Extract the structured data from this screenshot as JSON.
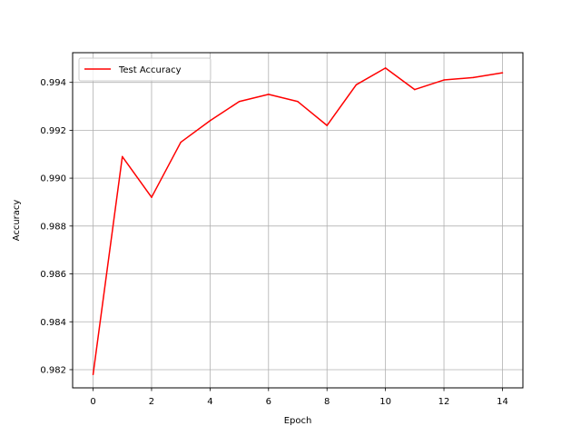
{
  "chart_data": {
    "type": "line",
    "title": "",
    "xlabel": "Epoch",
    "ylabel": "Accuracy",
    "x": [
      0,
      1,
      2,
      3,
      4,
      5,
      6,
      7,
      8,
      9,
      10,
      11,
      12,
      13,
      14
    ],
    "series": [
      {
        "name": "Test Accuracy",
        "color": "#ff0000",
        "values": [
          0.9818,
          0.9909,
          0.9892,
          0.9915,
          0.9924,
          0.9932,
          0.9935,
          0.9932,
          0.9922,
          0.9939,
          0.9946,
          0.9937,
          0.9941,
          0.9942,
          0.9944
        ]
      }
    ],
    "xlim": [
      -0.7,
      14.7
    ],
    "ylim": [
      0.98124,
      0.99524
    ],
    "xticks": [
      0,
      2,
      4,
      6,
      8,
      10,
      12,
      14
    ],
    "xtick_labels": [
      "0",
      "2",
      "4",
      "6",
      "8",
      "10",
      "12",
      "14"
    ],
    "yticks": [
      0.982,
      0.984,
      0.986,
      0.988,
      0.99,
      0.992,
      0.994
    ],
    "ytick_labels": [
      "0.982",
      "0.984",
      "0.986",
      "0.988",
      "0.990",
      "0.992",
      "0.994"
    ],
    "grid": true,
    "legend_position": "top-left"
  }
}
